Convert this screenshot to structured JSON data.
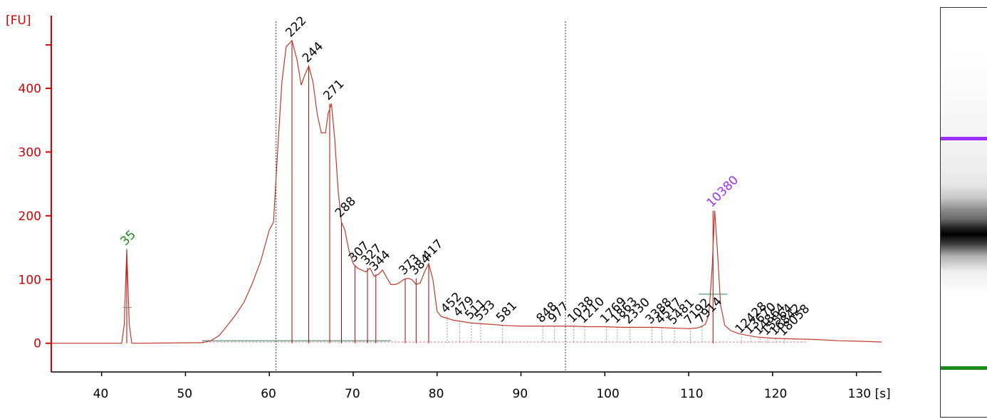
{
  "colors": {
    "axis": "#d40000",
    "trace": "#c0392b",
    "peak_label": "#000000",
    "lower_marker": "#1a8a1a",
    "upper_marker": "#9b30ff",
    "baseline": "#2e7d5a"
  },
  "chart_data": {
    "type": "line",
    "title": "",
    "xlabel": "[s]",
    "ylabel": "[FU]",
    "xlim": [
      34,
      133
    ],
    "ylim": [
      -45,
      505
    ],
    "x_ticks": [
      40,
      50,
      60,
      70,
      80,
      90,
      100,
      110,
      120,
      130
    ],
    "x_tick_labels": [
      "40",
      "50",
      "60",
      "70",
      "80",
      "90",
      "100",
      "110",
      "120",
      "130 [s]"
    ],
    "y_ticks": [
      0,
      100,
      200,
      300,
      400
    ],
    "y_tick_labels": [
      "0",
      "100",
      "200",
      "300",
      "400"
    ],
    "region_markers_s": [
      60.8,
      95.3
    ],
    "series": [
      {
        "x": [
          34,
          42.4,
          42.7,
          43.0,
          43.3,
          43.6,
          44,
          52,
          53,
          54,
          55,
          56,
          57,
          58,
          59,
          60,
          60.5,
          61,
          61.5,
          62,
          62.7,
          63.3,
          63.8,
          64.2,
          64.7,
          65.2,
          65.7,
          66.2,
          66.7,
          67.0,
          67.4,
          67.8,
          68.2,
          68.6,
          69.0,
          69.5,
          70.0,
          70.5,
          71.0,
          71.5,
          72.0,
          72.5,
          73.0,
          73.5,
          74.0,
          74.5,
          75.0,
          75.5,
          76.0,
          76.5,
          77.0,
          77.5,
          78.0,
          78.5,
          79.0,
          79.5,
          80.0,
          80.5,
          81,
          82,
          84,
          86,
          88,
          90,
          92,
          94,
          96,
          98,
          100,
          102,
          104,
          106,
          108,
          110,
          111,
          111.5,
          112.0,
          112.4,
          112.8,
          113.1,
          113.4,
          113.8,
          114.3,
          115,
          116,
          118,
          120,
          122,
          125,
          128,
          131,
          133
        ],
        "y": [
          0,
          0,
          30,
          148,
          30,
          0,
          0,
          1,
          4,
          12,
          28,
          45,
          65,
          95,
          130,
          178,
          190,
          305,
          410,
          465,
          475,
          445,
          405,
          420,
          435,
          410,
          360,
          330,
          330,
          360,
          376,
          320,
          240,
          190,
          178,
          145,
          125,
          118,
          115,
          112,
          118,
          105,
          108,
          115,
          103,
          92,
          92,
          95,
          100,
          102,
          100,
          92,
          95,
          112,
          125,
          100,
          50,
          42,
          40,
          36,
          32,
          30,
          28,
          27,
          27,
          27,
          27,
          26,
          26,
          25,
          25,
          25,
          24,
          23,
          24,
          26,
          30,
          45,
          120,
          208,
          150,
          60,
          28,
          20,
          15,
          10,
          8,
          7,
          6,
          4,
          3,
          2
        ]
      }
    ],
    "peak_labels": [
      {
        "x": 43.0,
        "y": 148,
        "label": "35",
        "marker": "lower"
      },
      {
        "x": 62.7,
        "y": 475,
        "label": "222"
      },
      {
        "x": 64.7,
        "y": 435,
        "label": "244"
      },
      {
        "x": 67.2,
        "y": 376,
        "label": "271"
      },
      {
        "x": 68.6,
        "y": 192,
        "label": "288"
      },
      {
        "x": 70.2,
        "y": 122,
        "label": "307"
      },
      {
        "x": 71.7,
        "y": 118,
        "label": "327"
      },
      {
        "x": 72.7,
        "y": 108,
        "label": "344"
      },
      {
        "x": 76.2,
        "y": 102,
        "label": "373"
      },
      {
        "x": 77.5,
        "y": 102,
        "label": "384"
      },
      {
        "x": 79.0,
        "y": 125,
        "label": "417"
      },
      {
        "x": 81.2,
        "y": 42,
        "label": "452"
      },
      {
        "x": 82.7,
        "y": 36,
        "label": "479"
      },
      {
        "x": 84.1,
        "y": 32,
        "label": "511"
      },
      {
        "x": 85.2,
        "y": 30,
        "label": "533"
      },
      {
        "x": 87.8,
        "y": 28,
        "label": "581"
      },
      {
        "x": 92.6,
        "y": 27,
        "label": "848"
      },
      {
        "x": 94.0,
        "y": 27,
        "label": "977"
      },
      {
        "x": 96.3,
        "y": 27,
        "label": "1038"
      },
      {
        "x": 97.6,
        "y": 26,
        "label": "1210"
      },
      {
        "x": 100.2,
        "y": 26,
        "label": "1769"
      },
      {
        "x": 101.5,
        "y": 26,
        "label": "1863"
      },
      {
        "x": 103.0,
        "y": 25,
        "label": "2330"
      },
      {
        "x": 105.6,
        "y": 25,
        "label": "3388"
      },
      {
        "x": 106.8,
        "y": 25,
        "label": "4517"
      },
      {
        "x": 108.3,
        "y": 24,
        "label": "5481"
      },
      {
        "x": 110.2,
        "y": 24,
        "label": "7192"
      },
      {
        "x": 111.6,
        "y": 26,
        "label": "7914"
      },
      {
        "x": 112.9,
        "y": 208,
        "label": "10380",
        "marker": "upper"
      },
      {
        "x": 116.3,
        "y": 10,
        "label": "12428"
      },
      {
        "x": 117.4,
        "y": 9,
        "label": "13670"
      },
      {
        "x": 118.5,
        "y": 8,
        "label": "14864"
      },
      {
        "x": 119.4,
        "y": 7,
        "label": "15564"
      },
      {
        "x": 120.4,
        "y": 7,
        "label": "16842"
      },
      {
        "x": 121.4,
        "y": 6,
        "label": "18058"
      }
    ]
  },
  "gel": {
    "colors": {
      "upper_marker": "#9b30ff",
      "lower_marker": "#1a8a1a"
    }
  }
}
